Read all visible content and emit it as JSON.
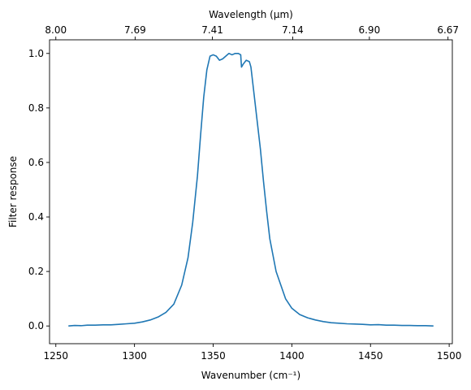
{
  "chart_data": {
    "type": "line",
    "title": "",
    "xlabel": "Wavenumber (cm⁻¹)",
    "ylabel": "Filter response",
    "top_xlabel": "Wavelength (μm)",
    "xlim": [
      1246,
      1502
    ],
    "ylim": [
      -0.065,
      1.05
    ],
    "x_ticks": [
      1250,
      1300,
      1350,
      1400,
      1450,
      1500
    ],
    "x_tick_labels": [
      "1250",
      "1300",
      "1350",
      "1400",
      "1450",
      "1500"
    ],
    "y_ticks": [
      0.0,
      0.2,
      0.4,
      0.6,
      0.8,
      1.0
    ],
    "y_tick_labels": [
      "0.0",
      "0.2",
      "0.4",
      "0.6",
      "0.8",
      "1.0"
    ],
    "top_ticks": [
      8.0,
      7.69,
      7.41,
      7.14,
      6.9,
      6.67
    ],
    "top_tick_labels": [
      "8.00",
      "7.69",
      "7.41",
      "7.14",
      "6.90",
      "6.67"
    ],
    "grid": false,
    "legend": "none",
    "series": [
      {
        "color": "#1f77b4",
        "x": [
          1258,
          1262,
          1266,
          1270,
          1275,
          1280,
          1285,
          1290,
          1295,
          1300,
          1305,
          1310,
          1315,
          1320,
          1325,
          1330,
          1334,
          1337,
          1340,
          1342,
          1344,
          1346,
          1348,
          1350,
          1352,
          1354,
          1356,
          1358,
          1360,
          1362,
          1364,
          1366,
          1367.5,
          1368,
          1369,
          1371,
          1373,
          1374,
          1376,
          1378,
          1380,
          1382,
          1384,
          1386,
          1388,
          1390,
          1393,
          1396,
          1400,
          1405,
          1410,
          1415,
          1420,
          1425,
          1430,
          1435,
          1440,
          1445,
          1450,
          1455,
          1460,
          1465,
          1470,
          1475,
          1480,
          1485,
          1490
        ],
        "y": [
          0.0,
          0.002,
          0.001,
          0.003,
          0.003,
          0.004,
          0.004,
          0.006,
          0.008,
          0.01,
          0.015,
          0.022,
          0.033,
          0.05,
          0.08,
          0.15,
          0.25,
          0.38,
          0.55,
          0.7,
          0.84,
          0.94,
          0.99,
          0.995,
          0.99,
          0.975,
          0.98,
          0.99,
          1.0,
          0.995,
          1.0,
          1.0,
          0.995,
          0.95,
          0.96,
          0.975,
          0.97,
          0.95,
          0.85,
          0.75,
          0.65,
          0.53,
          0.42,
          0.32,
          0.26,
          0.2,
          0.15,
          0.1,
          0.065,
          0.042,
          0.03,
          0.022,
          0.016,
          0.012,
          0.01,
          0.008,
          0.007,
          0.006,
          0.004,
          0.005,
          0.003,
          0.003,
          0.002,
          0.002,
          0.001,
          0.001,
          0.0
        ]
      }
    ]
  }
}
